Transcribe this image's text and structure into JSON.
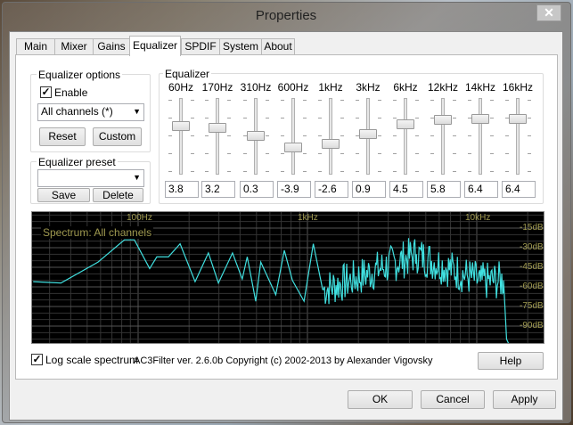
{
  "window": {
    "title": "Properties",
    "close_icon": "close-icon"
  },
  "tabs": [
    {
      "label": "Main"
    },
    {
      "label": "Mixer"
    },
    {
      "label": "Gains"
    },
    {
      "label": "Equalizer",
      "selected": true
    },
    {
      "label": "SPDIF"
    },
    {
      "label": "System"
    },
    {
      "label": "About"
    }
  ],
  "options": {
    "title": "Equalizer options",
    "enable_label": "Enable",
    "enable_checked": true,
    "channels_value": "All channels (*)",
    "reset_label": "Reset",
    "custom_label": "Custom"
  },
  "preset": {
    "title": "Equalizer preset",
    "value": "",
    "save_label": "Save",
    "delete_label": "Delete"
  },
  "equalizer": {
    "title": "Equalizer",
    "bands": [
      {
        "freq": "60Hz",
        "value": "3.8"
      },
      {
        "freq": "170Hz",
        "value": "3.2"
      },
      {
        "freq": "310Hz",
        "value": "0.3"
      },
      {
        "freq": "600Hz",
        "value": "-3.9"
      },
      {
        "freq": "1kHz",
        "value": "-2.6"
      },
      {
        "freq": "3kHz",
        "value": "0.9"
      },
      {
        "freq": "6kHz",
        "value": "4.5"
      },
      {
        "freq": "12kHz",
        "value": "5.8"
      },
      {
        "freq": "14kHz",
        "value": "6.4"
      },
      {
        "freq": "16kHz",
        "value": "6.4"
      }
    ]
  },
  "spectrum": {
    "title": "Spectrum: All channels",
    "freq_labels": [
      "100Hz",
      "1kHz",
      "10kHz"
    ],
    "db_labels": [
      "-15dB",
      "-30dB",
      "-45dB",
      "-60dB",
      "-75dB",
      "-90dB"
    ],
    "line_color": "#40e0e0",
    "label_color": "#a09a50",
    "points": [
      [
        24,
        -56
      ],
      [
        35,
        -57
      ],
      [
        58,
        -41
      ],
      [
        83,
        -24
      ],
      [
        95,
        -24
      ],
      [
        117,
        -46
      ],
      [
        129,
        -37
      ],
      [
        151,
        -37
      ],
      [
        177,
        -27
      ],
      [
        217,
        -56
      ],
      [
        260,
        -34
      ],
      [
        298,
        -57
      ],
      [
        361,
        -34
      ],
      [
        412,
        -54
      ],
      [
        441,
        -37
      ],
      [
        495,
        -71
      ],
      [
        530,
        -41
      ],
      [
        650,
        -66
      ],
      [
        730,
        -32
      ],
      [
        815,
        -55
      ],
      [
        955,
        -71
      ],
      [
        1083,
        -27
      ],
      [
        1230,
        -62
      ],
      [
        1800,
        -55
      ],
      [
        4400,
        -35
      ],
      [
        10500,
        -56
      ],
      [
        14400,
        -55
      ],
      [
        15000,
        -100
      ],
      [
        15500,
        -104
      ]
    ]
  },
  "log_scale": {
    "label": "Log scale spectrum",
    "checked": true
  },
  "copyright": "AC3Filter ver. 2.6.0b Copyright (c) 2002-2013 by Alexander Vigovsky",
  "help_label": "Help",
  "footer": {
    "ok": "OK",
    "cancel": "Cancel",
    "apply": "Apply"
  }
}
